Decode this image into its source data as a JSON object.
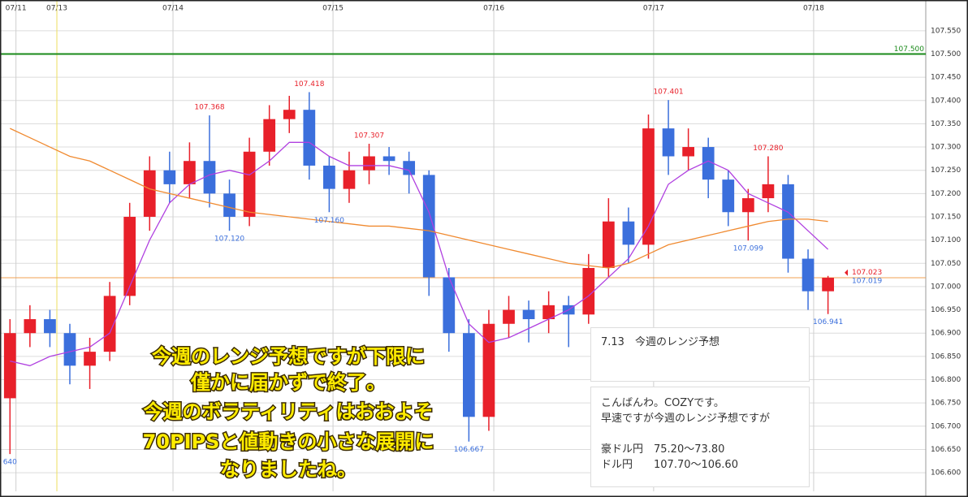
{
  "chart_data": {
    "type": "candlestick",
    "xlim": [
      0,
      46.4
    ],
    "ylim": [
      106.56,
      107.616
    ],
    "xticks": [
      {
        "value": 0.8,
        "label": "07/11"
      },
      {
        "value": 2.85,
        "label": "07/13"
      },
      {
        "value": 8.67,
        "label": "07/14"
      },
      {
        "value": 16.69,
        "label": "07/15"
      },
      {
        "value": 24.75,
        "label": "07/16"
      },
      {
        "value": 32.76,
        "label": "07/17"
      },
      {
        "value": 40.78,
        "label": "07/18"
      }
    ],
    "yticks": [
      {
        "value": 106.6,
        "label": "106.600"
      },
      {
        "value": 106.65,
        "label": "106.650"
      },
      {
        "value": 106.7,
        "label": "106.700"
      },
      {
        "value": 106.75,
        "label": "106.750"
      },
      {
        "value": 106.8,
        "label": "106.800"
      },
      {
        "value": 106.85,
        "label": "106.850"
      },
      {
        "value": 106.9,
        "label": "106.900"
      },
      {
        "value": 106.95,
        "label": "106.950"
      },
      {
        "value": 107.0,
        "label": "107.000"
      },
      {
        "value": 107.05,
        "label": "107.050"
      },
      {
        "value": 107.1,
        "label": "107.100"
      },
      {
        "value": 107.15,
        "label": "107.150"
      },
      {
        "value": 107.2,
        "label": "107.200"
      },
      {
        "value": 107.25,
        "label": "107.250"
      },
      {
        "value": 107.3,
        "label": "107.300"
      },
      {
        "value": 107.35,
        "label": "107.350"
      },
      {
        "value": 107.4,
        "label": "107.400"
      },
      {
        "value": 107.45,
        "label": "107.450"
      },
      {
        "value": 107.5,
        "label": "107.500"
      },
      {
        "value": 107.55,
        "label": "107.550"
      }
    ],
    "grid": true,
    "up_color": "#e8202a",
    "down_color": "#3b6fdc",
    "open": [
      106.76,
      106.9,
      106.93,
      106.9,
      106.83,
      106.86,
      106.98,
      107.15,
      107.25,
      107.22,
      107.27,
      107.2,
      107.15,
      107.29,
      107.36,
      107.38,
      107.26,
      107.21,
      107.25,
      107.28,
      107.27,
      107.24,
      107.02,
      106.9,
      106.72,
      106.92,
      106.95,
      106.93,
      106.96,
      106.94,
      107.04,
      107.14,
      107.09,
      107.34,
      107.28,
      107.3,
      107.23,
      107.16,
      107.19,
      107.22,
      107.06,
      106.99
    ],
    "high": [
      106.93,
      106.96,
      106.95,
      106.92,
      106.89,
      107.01,
      107.18,
      107.28,
      107.29,
      107.31,
      107.368,
      107.23,
      107.32,
      107.39,
      107.41,
      107.418,
      107.28,
      107.29,
      107.307,
      107.3,
      107.29,
      107.25,
      107.04,
      106.93,
      106.95,
      106.98,
      106.97,
      106.99,
      106.98,
      107.07,
      107.19,
      107.17,
      107.37,
      107.401,
      107.34,
      107.32,
      107.25,
      107.21,
      107.28,
      107.24,
      107.08,
      107.023
    ],
    "low": [
      106.64,
      106.87,
      106.87,
      106.79,
      106.78,
      106.84,
      106.96,
      107.12,
      107.18,
      107.19,
      107.17,
      107.12,
      107.13,
      107.26,
      107.33,
      107.23,
      107.16,
      107.18,
      107.22,
      107.24,
      107.2,
      106.98,
      106.86,
      106.667,
      106.69,
      106.89,
      106.88,
      106.9,
      106.87,
      106.92,
      107.02,
      107.05,
      107.06,
      107.24,
      107.25,
      107.19,
      107.13,
      107.099,
      107.16,
      107.03,
      106.95,
      106.941
    ],
    "close": [
      106.9,
      106.93,
      106.9,
      106.83,
      106.86,
      106.98,
      107.15,
      107.25,
      107.22,
      107.27,
      107.2,
      107.15,
      107.29,
      107.36,
      107.38,
      107.26,
      107.21,
      107.25,
      107.28,
      107.27,
      107.24,
      107.02,
      106.9,
      106.72,
      106.92,
      106.95,
      106.93,
      106.96,
      106.94,
      107.04,
      107.14,
      107.09,
      107.34,
      107.28,
      107.3,
      107.23,
      107.16,
      107.19,
      107.22,
      107.06,
      106.99,
      107.019
    ],
    "series": [
      {
        "color": "#b040e0",
        "values": [
          106.84,
          106.83,
          106.85,
          106.86,
          106.87,
          106.9,
          107.0,
          107.1,
          107.18,
          107.22,
          107.24,
          107.25,
          107.24,
          107.27,
          107.31,
          107.31,
          107.28,
          107.26,
          107.26,
          107.26,
          107.25,
          107.16,
          107.02,
          106.92,
          106.88,
          106.89,
          106.91,
          106.93,
          106.95,
          106.98,
          107.02,
          107.06,
          107.13,
          107.22,
          107.25,
          107.27,
          107.25,
          107.2,
          107.18,
          107.16,
          107.12,
          107.08
        ]
      },
      {
        "color": "#f08a30",
        "values": [
          107.34,
          107.32,
          107.3,
          107.28,
          107.27,
          107.25,
          107.23,
          107.21,
          107.2,
          107.19,
          107.18,
          107.17,
          107.16,
          107.155,
          107.15,
          107.145,
          107.14,
          107.135,
          107.13,
          107.13,
          107.125,
          107.12,
          107.11,
          107.1,
          107.09,
          107.08,
          107.07,
          107.06,
          107.05,
          107.045,
          107.04,
          107.05,
          107.07,
          107.09,
          107.1,
          107.11,
          107.12,
          107.13,
          107.14,
          107.145,
          107.145,
          107.14
        ]
      }
    ],
    "hlines": [
      {
        "value": 107.5,
        "label": "107.500",
        "color": "#1a8a1a"
      },
      {
        "value": 107.019,
        "color": "#f0a050"
      }
    ],
    "vline": {
      "value": 2.85,
      "color": "#f0e060"
    },
    "high_labels": [
      {
        "x": 10,
        "value": 107.368,
        "label": "107.368"
      },
      {
        "x": 15,
        "value": 107.418,
        "label": "107.418"
      },
      {
        "x": 18,
        "value": 107.307,
        "label": "107.307"
      },
      {
        "x": 33,
        "value": 107.401,
        "label": "107.401"
      },
      {
        "x": 38,
        "value": 107.28,
        "label": "107.280"
      }
    ],
    "low_labels": [
      {
        "x": 0,
        "value": 106.64,
        "label": "640"
      },
      {
        "x": 11,
        "value": 107.12,
        "label": "107.120"
      },
      {
        "x": 16,
        "value": 107.16,
        "label": "107.160"
      },
      {
        "x": 23,
        "value": 106.667,
        "label": "106.667"
      },
      {
        "x": 37,
        "value": 107.099,
        "label": "107.099"
      },
      {
        "x": 41,
        "value": 106.941,
        "label": "106.941"
      }
    ],
    "price_tags": [
      {
        "value": 107.023,
        "label": "107.023",
        "color": "#e8202a"
      },
      {
        "value": 107.019,
        "label": "107.019",
        "color": "#3b6fdc"
      }
    ],
    "overlay_text": [
      "今週のレンジ予想ですが下限に",
      "僅かに届かずで終了。",
      "今週のボラティリティはおおよそ",
      "70PIPSと値動きの小さな展開に",
      "なりましたね。"
    ],
    "card": {
      "title": "7.13　今週のレンジ予想",
      "lines": [
        "こんばんわ。COZYです。",
        "早速ですが今週のレンジ予想ですが",
        "豪ドル円　75.20〜73.80",
        "ドル円　　107.70〜106.60"
      ]
    }
  }
}
